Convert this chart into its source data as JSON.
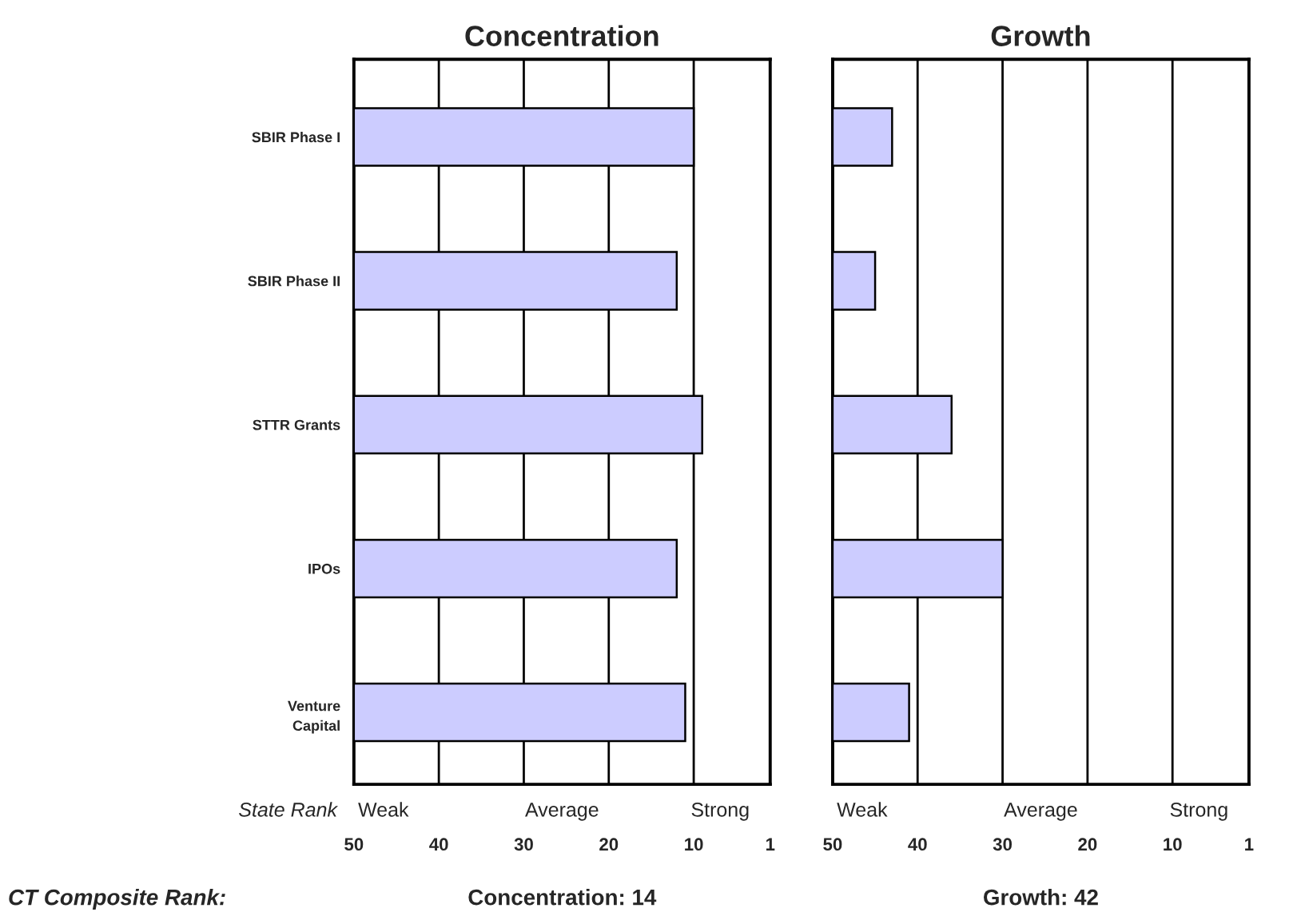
{
  "chart_data": [
    {
      "type": "bar",
      "orientation": "horizontal",
      "title": "Concentration",
      "categories": [
        "SBIR Phase I",
        "SBIR Phase II",
        "STTR Grants",
        "IPOs",
        "Venture\nCapital"
      ],
      "values": [
        -40,
        -38,
        -41,
        -38,
        -39
      ],
      "base": [
        50,
        50,
        50,
        50,
        50
      ],
      "color": "#ccccff",
      "xlim": [
        50,
        1
      ],
      "xticks": [
        50,
        40,
        30,
        20,
        10,
        1
      ],
      "grid": "x",
      "annotations": [
        "State Rank",
        "Weak",
        "Average",
        "Strong",
        "CT Composite Rank:",
        "Concentration: 14"
      ]
    },
    {
      "type": "bar",
      "orientation": "horizontal",
      "title": "Growth",
      "categories": [
        null,
        null,
        null,
        null,
        null
      ],
      "values": [
        -7,
        -5,
        -14,
        -20,
        -9
      ],
      "base": [
        50,
        50,
        50,
        50,
        50
      ],
      "color": "#ccccff",
      "xlim": [
        50,
        1
      ],
      "xticks": [
        50,
        40,
        30,
        20,
        10,
        1
      ],
      "grid": "x",
      "tick_labels": "x",
      "annotations": [
        "Weak",
        "Average",
        "Strong",
        "Growth: 42"
      ]
    }
  ]
}
